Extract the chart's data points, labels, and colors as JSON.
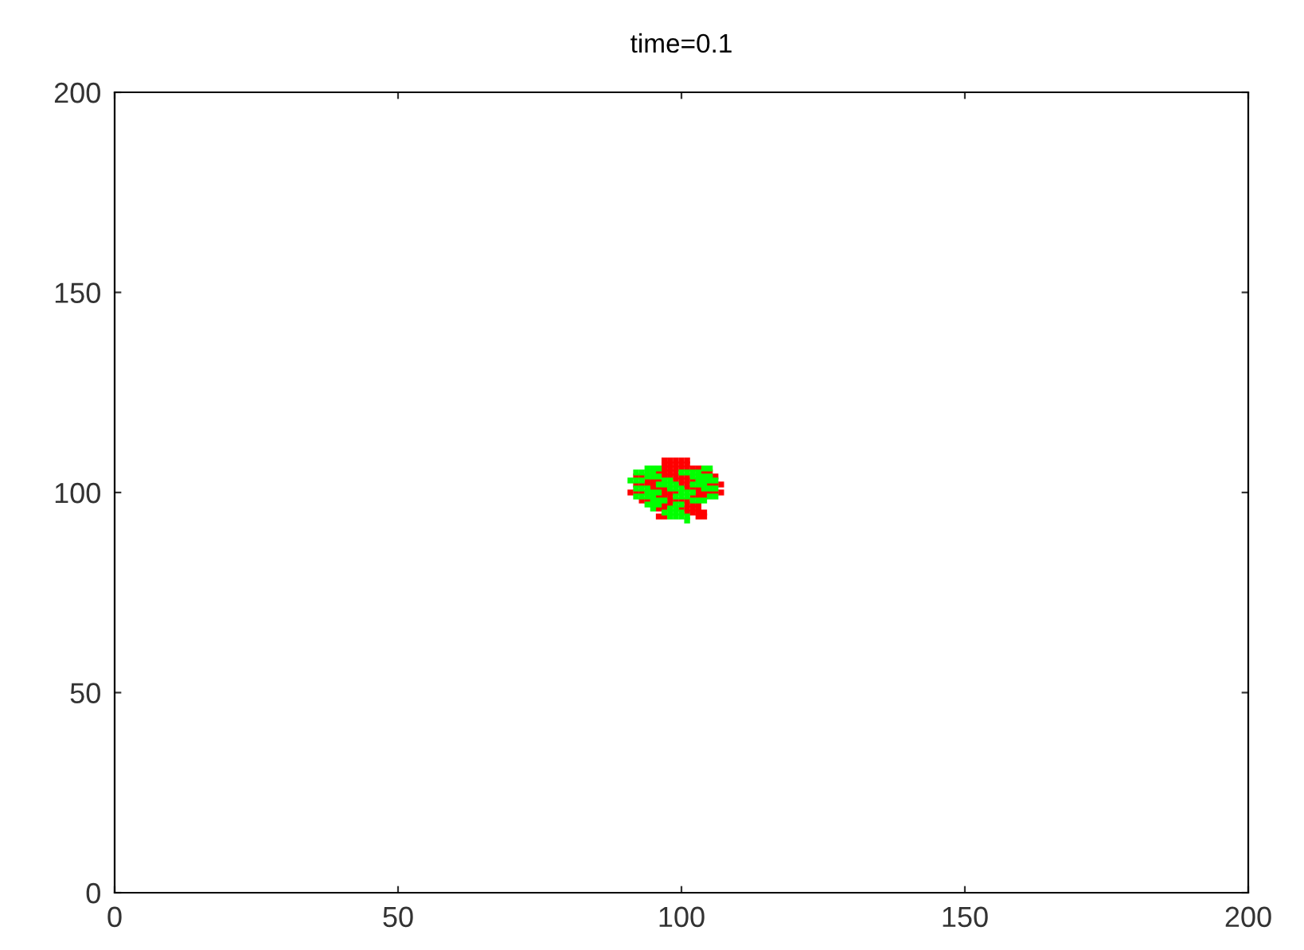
{
  "chart_data": {
    "type": "scatter",
    "title": "time=0.1",
    "marker": "square",
    "grid": false,
    "legend": false,
    "xlim": [
      0,
      200
    ],
    "ylim": [
      0,
      200
    ],
    "xticks": [
      0,
      50,
      100,
      150,
      200
    ],
    "yticks": [
      0,
      50,
      100,
      150,
      200
    ],
    "series": [
      {
        "color": "#ff0000",
        "x": [
          97,
          98,
          99,
          100,
          101,
          97,
          98,
          99,
          100,
          101,
          97,
          98,
          99,
          100,
          101,
          102,
          103,
          96,
          97,
          98,
          99,
          104,
          105,
          92,
          93,
          97,
          98,
          99,
          100,
          101,
          106,
          94,
          95,
          96,
          99,
          100,
          101,
          102,
          92,
          93,
          94,
          95,
          100,
          101,
          105,
          106,
          107,
          95,
          96,
          97,
          101,
          102,
          103,
          91,
          92,
          93,
          97,
          98,
          99,
          103,
          104,
          105,
          106,
          107,
          96,
          97,
          98,
          102,
          103,
          104,
          93,
          94,
          98,
          99,
          100,
          101,
          97,
          98,
          101,
          102,
          103,
          96,
          97,
          100,
          101,
          102,
          103,
          101,
          102,
          103,
          104,
          96,
          97,
          103,
          104
        ],
        "values": [
          108,
          108,
          108,
          108,
          108,
          107,
          107,
          107,
          107,
          107,
          106,
          106,
          106,
          106,
          106,
          106,
          106,
          105,
          105,
          105,
          105,
          105,
          105,
          104,
          104,
          104,
          104,
          104,
          104,
          104,
          104,
          103,
          103,
          103,
          103,
          103,
          103,
          103,
          102,
          102,
          102,
          102,
          102,
          102,
          102,
          102,
          102,
          101,
          101,
          101,
          101,
          101,
          101,
          100,
          100,
          100,
          100,
          100,
          100,
          100,
          100,
          100,
          100,
          100,
          99,
          99,
          99,
          99,
          99,
          99,
          98,
          98,
          98,
          98,
          98,
          98,
          97,
          97,
          97,
          97,
          97,
          96,
          96,
          96,
          96,
          96,
          96,
          95,
          95,
          95,
          95,
          94,
          94,
          94,
          94
        ]
      },
      {
        "color": "#00ff00",
        "x": [
          94,
          95,
          96,
          104,
          105,
          92,
          93,
          94,
          95,
          100,
          101,
          102,
          103,
          94,
          95,
          96,
          102,
          103,
          104,
          105,
          91,
          92,
          93,
          97,
          98,
          103,
          104,
          105,
          106,
          96,
          97,
          98,
          99,
          102,
          103,
          104,
          92,
          93,
          94,
          98,
          99,
          100,
          104,
          105,
          106,
          94,
          95,
          96,
          100,
          101,
          102,
          92,
          93,
          94,
          95,
          99,
          100,
          101,
          105,
          106,
          95,
          96,
          97,
          102,
          103,
          104,
          94,
          95,
          96,
          99,
          100,
          95,
          98,
          99,
          97,
          98,
          99,
          100,
          98,
          99,
          100,
          101,
          101
        ],
        "values": [
          106,
          106,
          106,
          106,
          106,
          105,
          105,
          105,
          105,
          105,
          105,
          105,
          105,
          104,
          104,
          104,
          104,
          104,
          104,
          104,
          103,
          103,
          103,
          103,
          103,
          103,
          103,
          103,
          103,
          102,
          102,
          102,
          102,
          102,
          102,
          102,
          101,
          101,
          101,
          101,
          101,
          101,
          101,
          101,
          101,
          100,
          100,
          100,
          100,
          100,
          100,
          99,
          99,
          99,
          99,
          99,
          99,
          99,
          99,
          99,
          98,
          98,
          98,
          98,
          98,
          98,
          97,
          97,
          97,
          97,
          97,
          96,
          96,
          96,
          95,
          95,
          95,
          95,
          94,
          94,
          94,
          94,
          93
        ]
      }
    ]
  }
}
